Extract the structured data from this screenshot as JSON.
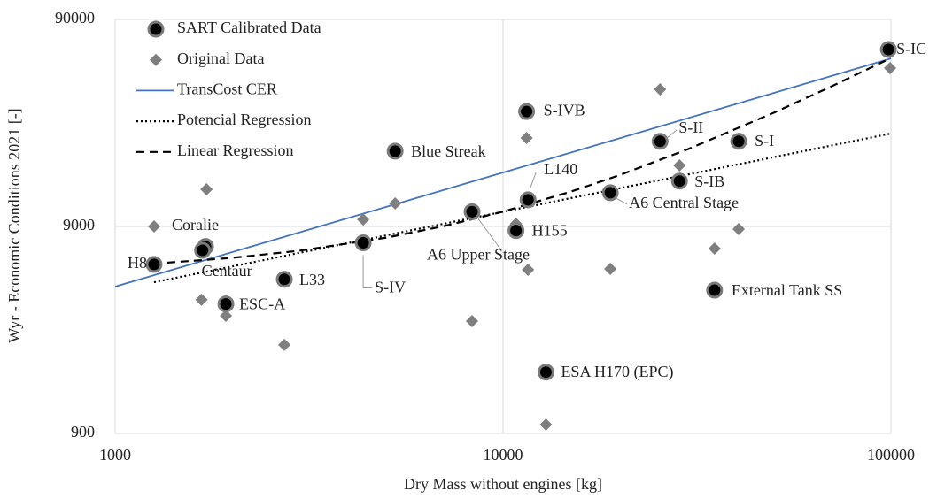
{
  "chart_data": {
    "type": "scatter",
    "xlabel": "Dry Mass without engines [kg]",
    "ylabel": "Wyr - Economic Conditions 2021 [-]",
    "xscale": "log",
    "yscale": "log",
    "xlim": [
      1000,
      100000
    ],
    "ylim": [
      900,
      90000
    ],
    "xticks": [
      1000,
      10000,
      100000
    ],
    "yticks": [
      900,
      9000,
      90000
    ],
    "grid": true,
    "legend": "upper left",
    "series": [
      {
        "name": "SART Calibrated Data",
        "color": "#000000",
        "marker": "circle",
        "labels": [
          "H8",
          "Coralie",
          "Centaur",
          "ESC-A",
          "L33",
          "S-IV",
          "Blue Streak",
          "A6 Upper Stage",
          "H155",
          "L140",
          "S-IVB",
          "ESA H170 (EPC)",
          "A6 Central Stage",
          "S-II",
          "S-IB",
          "S-I",
          "External Tank SS",
          "S-IC"
        ],
        "x": [
          1260,
          1710,
          1680,
          1930,
          2730,
          4360,
          5270,
          8320,
          10800,
          11600,
          11500,
          12900,
          18900,
          25400,
          28500,
          40500,
          35100,
          98500
        ],
        "values": [
          5900,
          7200,
          6900,
          3800,
          5000,
          7500,
          20800,
          10600,
          8600,
          12100,
          32300,
          1780,
          13100,
          23200,
          14900,
          23200,
          4430,
          64400
        ]
      },
      {
        "name": "Original Data",
        "color": "#7f7f7f",
        "marker": "diamond",
        "x": [
          1260,
          1720,
          1670,
          1930,
          2730,
          4360,
          5270,
          8320,
          10800,
          11600,
          11500,
          12900,
          18900,
          25400,
          28500,
          40500,
          35100,
          99500
        ],
        "values": [
          9000,
          13600,
          3980,
          3330,
          2410,
          9730,
          11620,
          3140,
          9270,
          5560,
          24070,
          993,
          5610,
          41360,
          17750,
          8740,
          7040,
          52390
        ]
      },
      {
        "name": "TransCost CER",
        "color": "#4472c4",
        "style": "solid",
        "x": [
          1000,
          100000
        ],
        "values": [
          4610,
          58300
        ]
      },
      {
        "name": "Potencial Regression",
        "color": "#000000",
        "style": "dotted",
        "x": [
          1260,
          100000
        ],
        "values": [
          4840,
          25300
        ]
      },
      {
        "name": "Linear Regression",
        "color": "#000000",
        "style": "dashed",
        "x": [
          1260,
          2000,
          3000,
          5000,
          7000,
          10000,
          15000,
          20000,
          30000,
          50000,
          70000,
          98500
        ],
        "values": [
          5950,
          6344,
          6878,
          7944,
          9010,
          10610,
          13276,
          15942,
          21274,
          31938,
          42602,
          57798
        ]
      }
    ]
  }
}
